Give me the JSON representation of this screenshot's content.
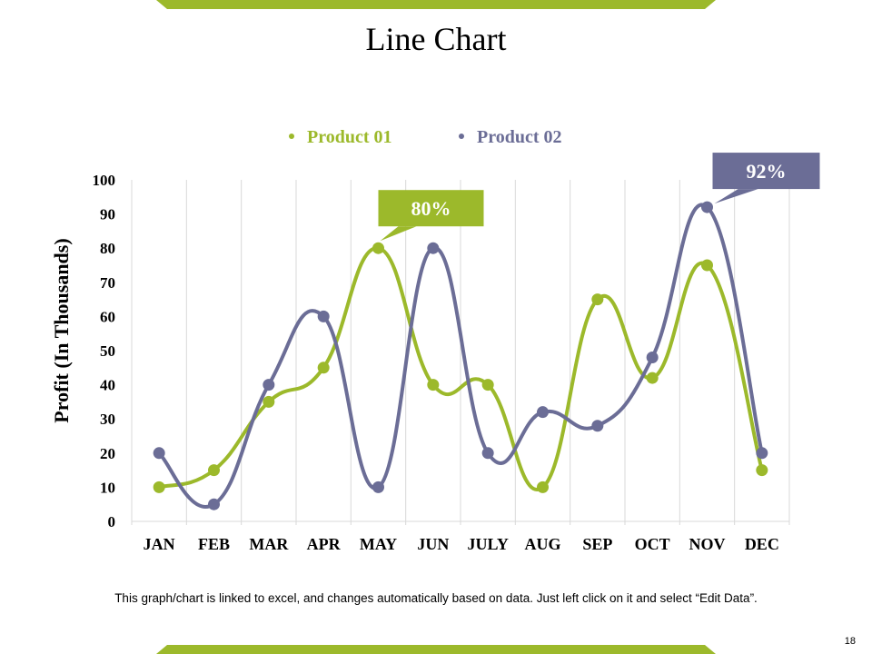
{
  "slide": {
    "title": "Line Chart",
    "footnote": "This graph/chart is linked to excel, and changes automatically based on data. Just left click on it and select “Edit Data”.",
    "page_number": "18"
  },
  "colors": {
    "product_01": "#9cb92b",
    "product_02": "#6b6d96",
    "band": "#9cb92b",
    "grid": "#d9d9d9"
  },
  "callouts": [
    {
      "text": "80%",
      "series": "Product 01",
      "category": "MAY",
      "value": 80
    },
    {
      "text": "92%",
      "series": "Product 02",
      "category": "NOV",
      "value": 92
    }
  ],
  "chart_data": {
    "type": "line",
    "title": "Line Chart",
    "xlabel": "",
    "ylabel": "Profit (In Thousands)",
    "categories": [
      "JAN",
      "FEB",
      "MAR",
      "APR",
      "MAY",
      "JUN",
      "JULY",
      "AUG",
      "SEP",
      "OCT",
      "NOV",
      "DEC"
    ],
    "series": [
      {
        "name": "Product 01",
        "values": [
          10,
          15,
          35,
          45,
          80,
          40,
          40,
          10,
          65,
          42,
          75,
          15
        ]
      },
      {
        "name": "Product 02",
        "values": [
          20,
          5,
          40,
          60,
          10,
          80,
          20,
          32,
          28,
          48,
          92,
          20
        ]
      }
    ],
    "ylim": [
      0,
      100
    ],
    "yticks": [
      0,
      10,
      20,
      30,
      40,
      50,
      60,
      70,
      80,
      90,
      100
    ],
    "grid": "vertical",
    "smooth": true,
    "legend": "top-center"
  }
}
